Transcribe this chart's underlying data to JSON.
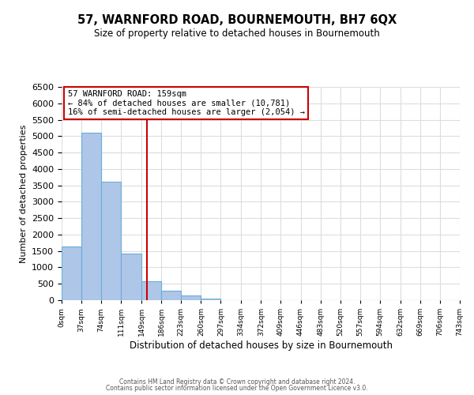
{
  "title": "57, WARNFORD ROAD, BOURNEMOUTH, BH7 6QX",
  "subtitle": "Size of property relative to detached houses in Bournemouth",
  "xlabel": "Distribution of detached houses by size in Bournemouth",
  "ylabel": "Number of detached properties",
  "bin_edges": [
    0,
    37,
    74,
    111,
    149,
    186,
    223,
    260,
    297,
    334,
    372,
    409,
    446,
    483,
    520,
    557,
    594,
    632,
    669,
    706,
    743
  ],
  "counts": [
    1630,
    5100,
    3600,
    1430,
    580,
    290,
    150,
    55,
    0,
    0,
    0,
    0,
    0,
    0,
    0,
    0,
    0,
    0,
    0,
    0
  ],
  "bar_color": "#aec6e8",
  "bar_edge_color": "#6aaed6",
  "property_line_x": 159,
  "property_line_color": "#cc0000",
  "annotation_title": "57 WARNFORD ROAD: 159sqm",
  "annotation_line1": "← 84% of detached houses are smaller (10,781)",
  "annotation_line2": "16% of semi-detached houses are larger (2,054) →",
  "annotation_box_color": "#cc0000",
  "ylim": [
    0,
    6500
  ],
  "yticks": [
    0,
    500,
    1000,
    1500,
    2000,
    2500,
    3000,
    3500,
    4000,
    4500,
    5000,
    5500,
    6000,
    6500
  ],
  "footer_line1": "Contains HM Land Registry data © Crown copyright and database right 2024.",
  "footer_line2": "Contains public sector information licensed under the Open Government Licence v3.0.",
  "bg_color": "#ffffff",
  "grid_color": "#dddddd"
}
